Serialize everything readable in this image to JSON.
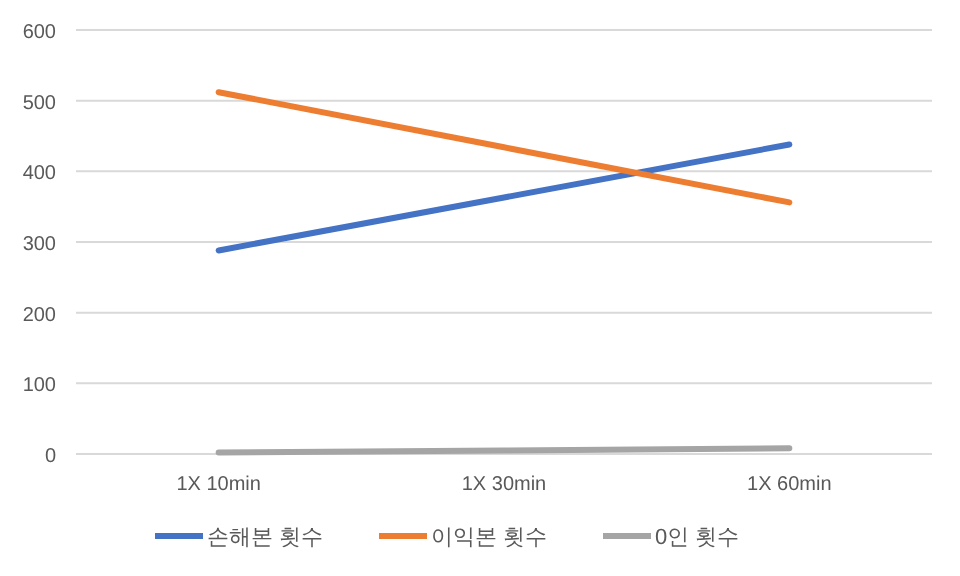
{
  "chart_data": {
    "type": "line",
    "categories": [
      "1X 10min",
      "1X 30min",
      "1X 60min"
    ],
    "series": [
      {
        "name": "손해본 횟수",
        "color": "#4472c4",
        "values": [
          288,
          363,
          438
        ]
      },
      {
        "name": "이익본 횟수",
        "color": "#ed7d31",
        "values": [
          512,
          434,
          356
        ]
      },
      {
        "name": "0인 횟수",
        "color": "#a5a5a5",
        "values": [
          2,
          5,
          8
        ]
      }
    ],
    "ylim": [
      0,
      600
    ],
    "yticks": [
      0,
      100,
      200,
      300,
      400,
      500,
      600
    ],
    "grid": "y",
    "legend": "bottom",
    "marker": "none",
    "line_style": "solid"
  }
}
